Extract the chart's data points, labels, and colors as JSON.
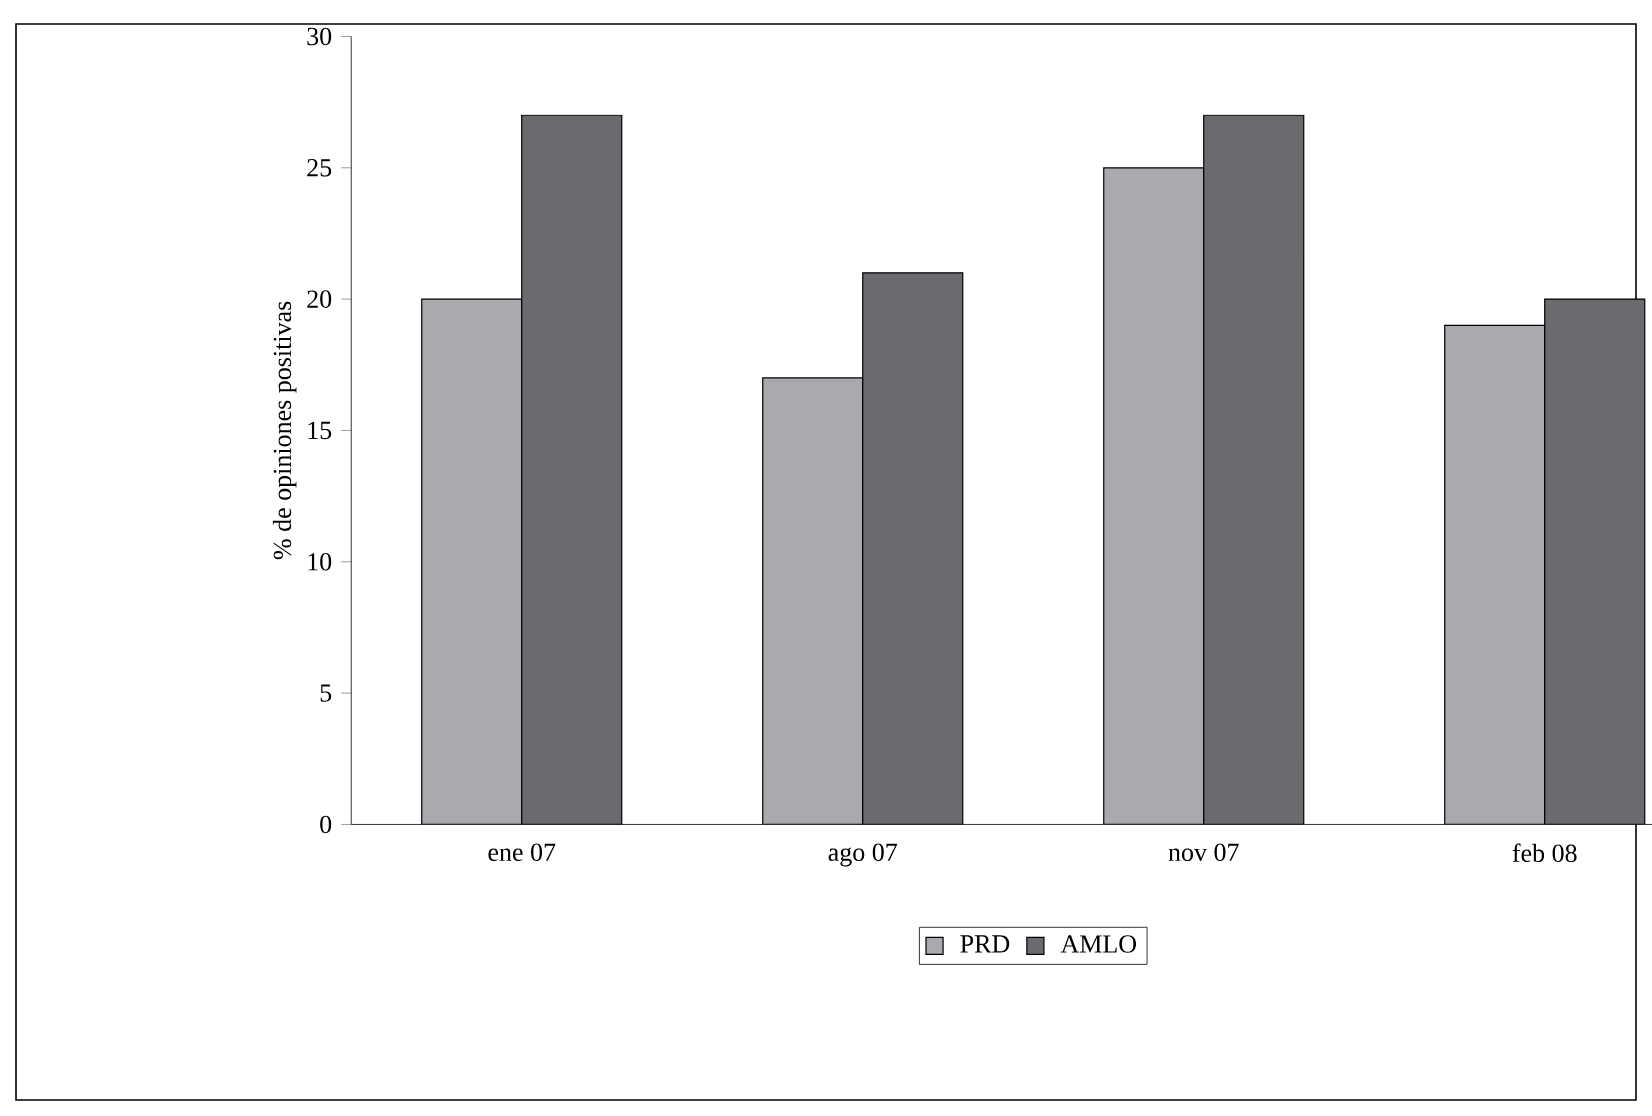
{
  "chart_data": {
    "type": "bar",
    "ylabel": "% de opiniones positivas",
    "categories": [
      "ene 07",
      "ago 07",
      "nov 07",
      "feb 08"
    ],
    "series": [
      {
        "name": "PRD",
        "color": "#a9aaad",
        "values": [
          20,
          17,
          25,
          19
        ]
      },
      {
        "name": "AMLO",
        "color": "#6a6b6f",
        "values": [
          27,
          21,
          27,
          20
        ]
      }
    ],
    "ylim": [
      0,
      30
    ],
    "yticks": [
      0,
      5,
      10,
      15,
      20,
      25,
      30
    ],
    "legend": "bottom",
    "grid": false
  }
}
